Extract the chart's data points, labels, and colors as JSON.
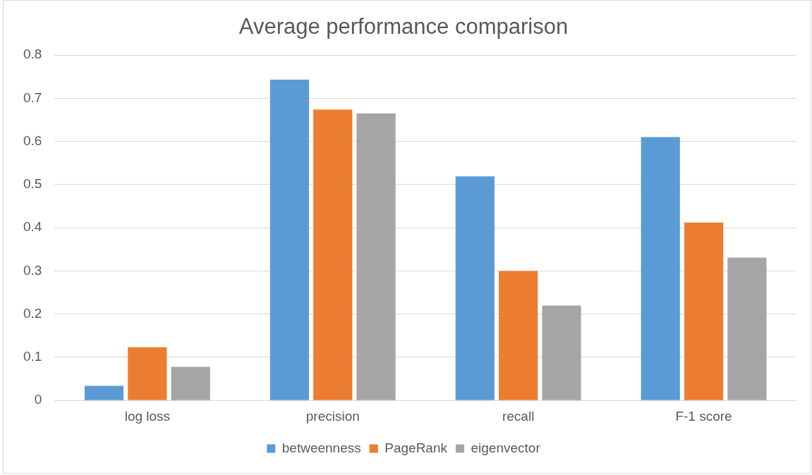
{
  "chart_data": {
    "type": "bar",
    "title": "Average performance comparison",
    "categories": [
      "log loss",
      "precision",
      "recall",
      "F-1 score"
    ],
    "series": [
      {
        "name": "betweenness",
        "color": "#5b9bd5",
        "values": [
          0.034,
          0.743,
          0.519,
          0.61
        ]
      },
      {
        "name": "PageRank",
        "color": "#ed7d31",
        "values": [
          0.123,
          0.674,
          0.3,
          0.412
        ]
      },
      {
        "name": "eigenvector",
        "color": "#a5a5a5",
        "values": [
          0.078,
          0.665,
          0.22,
          0.331
        ]
      }
    ],
    "ylim": [
      0,
      0.8
    ],
    "yticks": [
      0,
      0.1,
      0.2,
      0.3,
      0.4,
      0.5,
      0.6,
      0.7,
      0.8
    ],
    "grid": "y",
    "legend": "bottom"
  }
}
